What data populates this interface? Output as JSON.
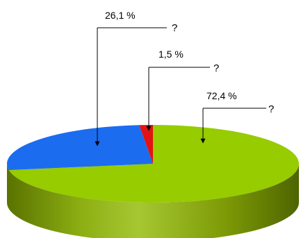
{
  "chart_data": {
    "type": "pie",
    "style": "3d",
    "title": "",
    "slices": [
      {
        "label": "26,1 %",
        "value": 26.1,
        "legend": "?",
        "color": "#1c6cf0"
      },
      {
        "label": "1,5 %",
        "value": 1.5,
        "legend": "?",
        "color": "#e01414"
      },
      {
        "label": "72,4 %",
        "value": 72.4,
        "legend": "?",
        "color": "#96cc00"
      }
    ],
    "side_color": "#6f8a00"
  }
}
